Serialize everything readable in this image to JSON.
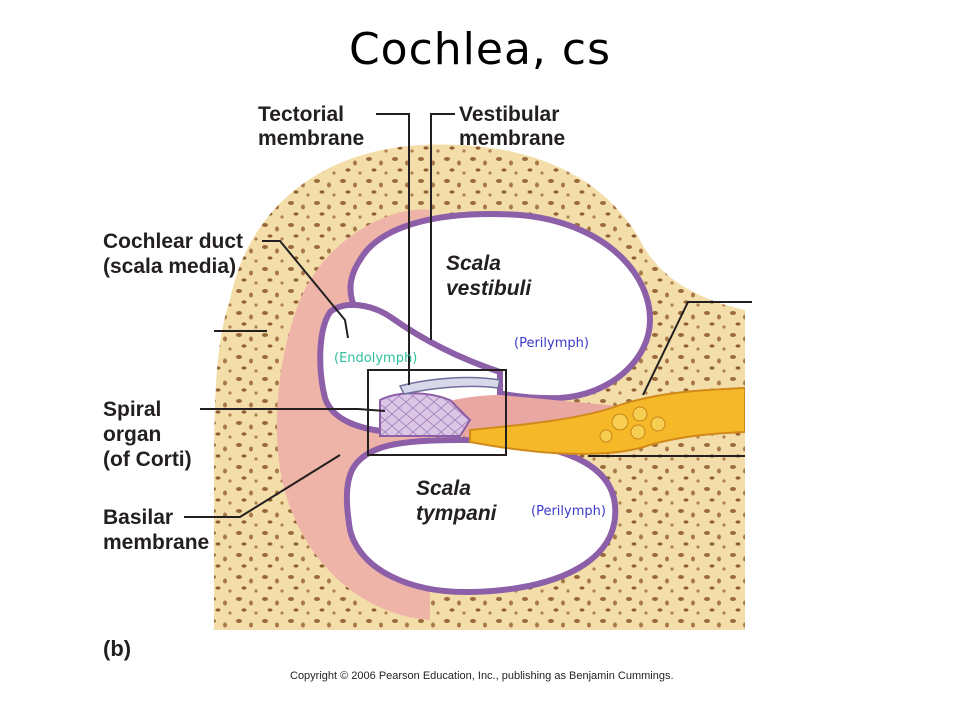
{
  "title": "Cochlea, cs",
  "labels": {
    "tectorial": [
      "Tectorial",
      "membrane"
    ],
    "vestibular": [
      "Vestibular",
      "membrane"
    ],
    "cochlear_duct": [
      "Cochlear duct",
      "(scala media)"
    ],
    "spiral_organ": [
      "Spiral",
      "organ",
      "(of Corti)"
    ],
    "basilar": [
      "Basilar",
      "membrane"
    ],
    "scala_vestibuli": [
      "Scala",
      "vestibuli"
    ],
    "scala_tympani": [
      "Scala",
      "tympani"
    ]
  },
  "annotations": {
    "endolymph": "(Endolymph)",
    "perilymph_upper": "(Perilymph)",
    "perilymph_lower": "(Perilymph)"
  },
  "panel_letter": "(b)",
  "copyright": "Copyright © 2006 Pearson Education, Inc., publishing as Benjamin Cummings.",
  "colors": {
    "bone": "#f3deaa",
    "bone_spot": "#9a6a3c",
    "tissue": "#eeb4a8",
    "membrane": "#b796c8",
    "nerve": "#f5b829",
    "endolymph_text": "#2fbfa0",
    "perilymph_text": "#3a3ac8"
  }
}
